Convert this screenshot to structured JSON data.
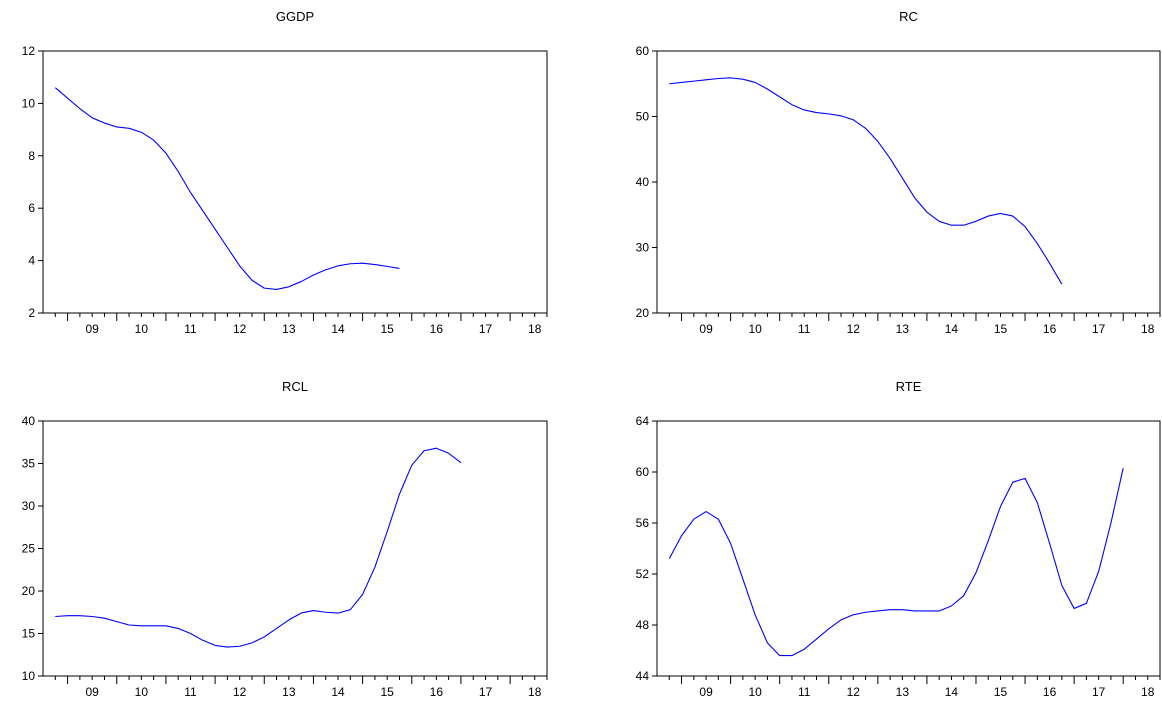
{
  "colors": {
    "line": "#0000ff",
    "axis": "#000000",
    "background": "#ffffff"
  },
  "chart_data": [
    {
      "type": "line",
      "title": "GGDP",
      "xlabel": "",
      "ylabel": "",
      "grid": false,
      "ylim": [
        2,
        12
      ],
      "yticks": [
        2,
        4,
        6,
        8,
        10,
        12
      ],
      "xticks": [
        "09",
        "10",
        "11",
        "12",
        "13",
        "14",
        "15",
        "16",
        "17",
        "18"
      ],
      "xlim": [
        2008.5,
        2018.75
      ],
      "series": [
        {
          "values": [
            10.6,
            10.2,
            9.8,
            9.45,
            9.25,
            9.1,
            9.05,
            8.9,
            8.6,
            8.1,
            7.4,
            6.6,
            5.9,
            5.2,
            4.5,
            3.8,
            3.25,
            2.95,
            2.9,
            3.0,
            3.2,
            3.45,
            3.65,
            3.8,
            3.88,
            3.9,
            3.85,
            3.78,
            3.7
          ]
        }
      ],
      "x": [
        2008.75,
        2009.0,
        2009.25,
        2009.5,
        2009.75,
        2010.0,
        2010.25,
        2010.5,
        2010.75,
        2011.0,
        2011.25,
        2011.5,
        2011.75,
        2012.0,
        2012.25,
        2012.5,
        2012.75,
        2013.0,
        2013.25,
        2013.5,
        2013.75,
        2014.0,
        2014.25,
        2014.5,
        2014.75,
        2015.0,
        2015.25,
        2015.5,
        2015.75
      ]
    },
    {
      "type": "line",
      "title": "RC",
      "xlabel": "",
      "ylabel": "",
      "grid": false,
      "ylim": [
        20,
        60
      ],
      "yticks": [
        20,
        30,
        40,
        50,
        60
      ],
      "xticks": [
        "09",
        "10",
        "11",
        "12",
        "13",
        "14",
        "15",
        "16",
        "17",
        "18"
      ],
      "xlim": [
        2008.5,
        2018.75
      ],
      "series": [
        {
          "values": [
            55.0,
            55.2,
            55.4,
            55.6,
            55.8,
            55.9,
            55.7,
            55.2,
            54.2,
            53.0,
            51.8,
            51.0,
            50.6,
            50.4,
            50.1,
            49.5,
            48.2,
            46.2,
            43.6,
            40.6,
            37.6,
            35.4,
            34.0,
            33.4,
            33.4,
            34.0,
            34.8,
            35.2,
            34.8,
            33.2,
            30.6,
            27.6,
            24.4
          ]
        }
      ],
      "x": [
        2008.75,
        2009.0,
        2009.25,
        2009.5,
        2009.75,
        2010.0,
        2010.25,
        2010.5,
        2010.75,
        2011.0,
        2011.25,
        2011.5,
        2011.75,
        2012.0,
        2012.25,
        2012.5,
        2012.75,
        2013.0,
        2013.25,
        2013.5,
        2013.75,
        2014.0,
        2014.25,
        2014.5,
        2014.75,
        2015.0,
        2015.25,
        2015.5,
        2015.75,
        2016.0,
        2016.25,
        2016.5,
        2016.75
      ]
    },
    {
      "type": "line",
      "title": "RCL",
      "xlabel": "",
      "ylabel": "",
      "grid": false,
      "ylim": [
        10,
        40
      ],
      "yticks": [
        10,
        15,
        20,
        25,
        30,
        35,
        40
      ],
      "xticks": [
        "09",
        "10",
        "11",
        "12",
        "13",
        "14",
        "15",
        "16",
        "17",
        "18"
      ],
      "xlim": [
        2008.5,
        2018.75
      ],
      "series": [
        {
          "values": [
            17.0,
            17.1,
            17.1,
            17.0,
            16.8,
            16.4,
            16.0,
            15.9,
            15.9,
            15.9,
            15.6,
            15.0,
            14.2,
            13.6,
            13.4,
            13.5,
            13.9,
            14.6,
            15.6,
            16.6,
            17.4,
            17.7,
            17.5,
            17.4,
            17.8,
            19.6,
            22.8,
            27.0,
            31.4,
            34.8,
            36.5,
            36.8,
            36.2,
            35.1
          ]
        }
      ],
      "x": [
        2008.75,
        2009.0,
        2009.25,
        2009.5,
        2009.75,
        2010.0,
        2010.25,
        2010.5,
        2010.75,
        2011.0,
        2011.25,
        2011.5,
        2011.75,
        2012.0,
        2012.25,
        2012.5,
        2012.75,
        2013.0,
        2013.25,
        2013.5,
        2013.75,
        2014.0,
        2014.25,
        2014.5,
        2014.75,
        2015.0,
        2015.25,
        2015.5,
        2015.75,
        2016.0,
        2016.25,
        2016.5,
        2016.75,
        2017.0
      ]
    },
    {
      "type": "line",
      "title": "RTE",
      "xlabel": "",
      "ylabel": "",
      "grid": false,
      "ylim": [
        44,
        64
      ],
      "yticks": [
        44,
        48,
        52,
        56,
        60,
        64
      ],
      "xticks": [
        "09",
        "10",
        "11",
        "12",
        "13",
        "14",
        "15",
        "16",
        "17",
        "18"
      ],
      "xlim": [
        2008.5,
        2018.75
      ],
      "series": [
        {
          "values": [
            53.2,
            55.0,
            56.3,
            56.9,
            56.3,
            54.4,
            51.6,
            48.8,
            46.6,
            45.6,
            45.6,
            46.1,
            46.9,
            47.7,
            48.4,
            48.8,
            49.0,
            49.1,
            49.2,
            49.2,
            49.1,
            49.1,
            49.1,
            49.5,
            50.3,
            52.1,
            54.6,
            57.3,
            59.2,
            59.5,
            57.6,
            54.4,
            51.1,
            49.3,
            49.7,
            52.2,
            56.0,
            60.3
          ]
        }
      ],
      "x": [
        2008.75,
        2009.0,
        2009.25,
        2009.5,
        2009.75,
        2010.0,
        2010.25,
        2010.5,
        2010.75,
        2011.0,
        2011.25,
        2011.5,
        2011.75,
        2012.0,
        2012.25,
        2012.5,
        2012.75,
        2013.0,
        2013.25,
        2013.5,
        2013.75,
        2014.0,
        2014.25,
        2014.5,
        2014.75,
        2015.0,
        2015.25,
        2015.5,
        2015.75,
        2016.0,
        2016.25,
        2016.5,
        2016.75,
        2017.0,
        2017.25,
        2017.5,
        2017.75,
        2018.0
      ]
    }
  ]
}
